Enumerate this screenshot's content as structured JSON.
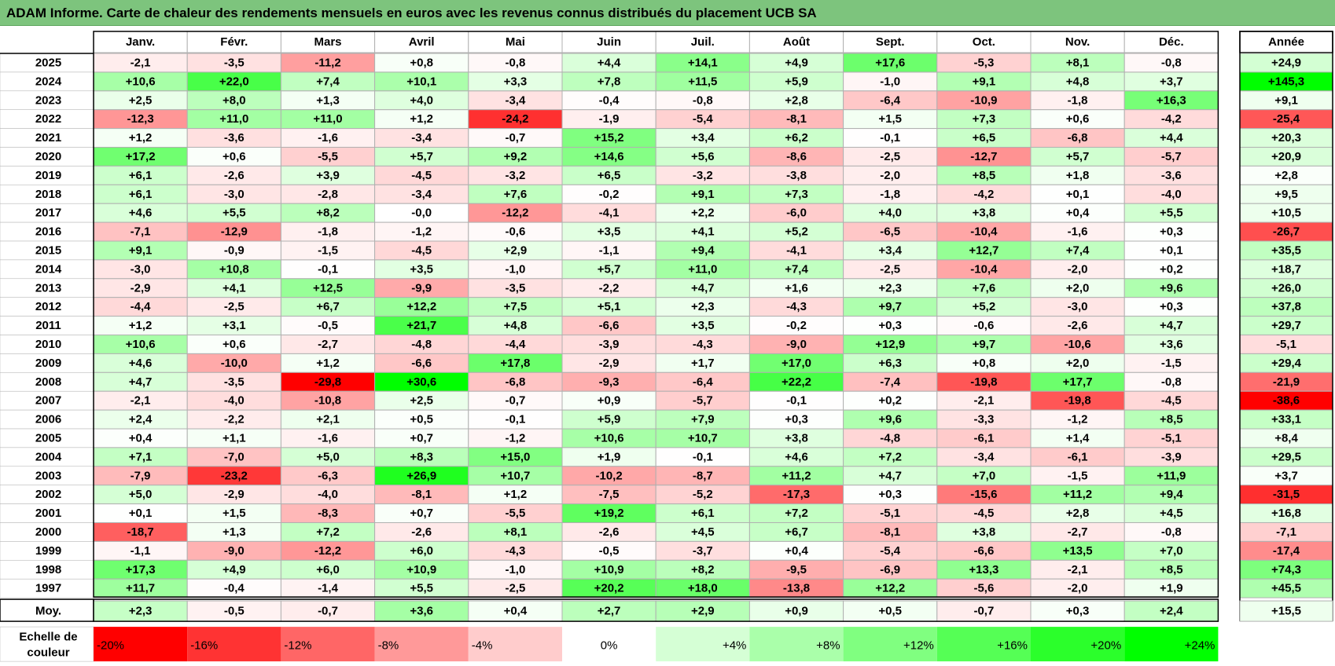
{
  "title": "ADAM Informe. Carte de chaleur des rendements mensuels en euros avec les revenus connus distribués du placement UCB SA",
  "chart_data": {
    "type": "heatmap",
    "months": [
      "Janv.",
      "Févr.",
      "Mars",
      "Avril",
      "Mai",
      "Juin",
      "Juil.",
      "Août",
      "Sept.",
      "Oct.",
      "Nov.",
      "Déc."
    ],
    "year_header": "Année",
    "rows": [
      {
        "year": "2025",
        "values": [
          "-2,1",
          "-3,5",
          "-11,2",
          "+0,8",
          "-0,8",
          "+4,4",
          "+14,1",
          "+4,9",
          "+17,6",
          "-5,3",
          "+8,1",
          "-0,8"
        ],
        "annual": "+24,9"
      },
      {
        "year": "2024",
        "values": [
          "+10,6",
          "+22,0",
          "+7,4",
          "+10,1",
          "+3,3",
          "+7,8",
          "+11,5",
          "+5,9",
          "-1,0",
          "+9,1",
          "+4,8",
          "+3,7"
        ],
        "annual": "+145,3"
      },
      {
        "year": "2023",
        "values": [
          "+2,5",
          "+8,0",
          "+1,3",
          "+4,0",
          "-3,4",
          "-0,4",
          "-0,8",
          "+2,8",
          "-6,4",
          "-10,9",
          "-1,8",
          "+16,3"
        ],
        "annual": "+9,1"
      },
      {
        "year": "2022",
        "values": [
          "-12,3",
          "+11,0",
          "+11,0",
          "+1,2",
          "-24,2",
          "-1,9",
          "-5,4",
          "-8,1",
          "+1,5",
          "+7,3",
          "+0,6",
          "-4,2"
        ],
        "annual": "-25,4"
      },
      {
        "year": "2021",
        "values": [
          "+1,2",
          "-3,6",
          "-1,6",
          "-3,4",
          "-0,7",
          "+15,2",
          "+3,4",
          "+6,2",
          "-0,1",
          "+6,5",
          "-6,8",
          "+4,4"
        ],
        "annual": "+20,3"
      },
      {
        "year": "2020",
        "values": [
          "+17,2",
          "+0,6",
          "-5,5",
          "+5,7",
          "+9,2",
          "+14,6",
          "+5,6",
          "-8,6",
          "-2,5",
          "-12,7",
          "+5,7",
          "-5,7"
        ],
        "annual": "+20,9"
      },
      {
        "year": "2019",
        "values": [
          "+6,1",
          "-2,6",
          "+3,9",
          "-4,5",
          "-3,2",
          "+6,5",
          "-3,2",
          "-3,8",
          "-2,0",
          "+8,5",
          "+1,8",
          "-3,6"
        ],
        "annual": "+2,8"
      },
      {
        "year": "2018",
        "values": [
          "+6,1",
          "-3,0",
          "-2,8",
          "-3,4",
          "+7,6",
          "-0,2",
          "+9,1",
          "+7,3",
          "-1,8",
          "-4,2",
          "+0,1",
          "-4,0"
        ],
        "annual": "+9,5"
      },
      {
        "year": "2017",
        "values": [
          "+4,6",
          "+5,5",
          "+8,2",
          "-0,0",
          "-12,2",
          "-4,1",
          "+2,2",
          "-6,0",
          "+4,0",
          "+3,8",
          "+0,4",
          "+5,5"
        ],
        "annual": "+10,5"
      },
      {
        "year": "2016",
        "values": [
          "-7,1",
          "-12,9",
          "-1,8",
          "-1,2",
          "-0,6",
          "+3,5",
          "+4,1",
          "+5,2",
          "-6,5",
          "-10,4",
          "-1,6",
          "+0,3"
        ],
        "annual": "-26,7"
      },
      {
        "year": "2015",
        "values": [
          "+9,1",
          "-0,9",
          "-1,5",
          "-4,5",
          "+2,9",
          "-1,1",
          "+9,4",
          "-4,1",
          "+3,4",
          "+12,7",
          "+7,4",
          "+0,1"
        ],
        "annual": "+35,5"
      },
      {
        "year": "2014",
        "values": [
          "-3,0",
          "+10,8",
          "-0,1",
          "+3,5",
          "-1,0",
          "+5,7",
          "+11,0",
          "+7,4",
          "-2,5",
          "-10,4",
          "-2,0",
          "+0,2"
        ],
        "annual": "+18,7"
      },
      {
        "year": "2013",
        "values": [
          "-2,9",
          "+4,1",
          "+12,5",
          "-9,9",
          "-3,5",
          "-2,2",
          "+4,7",
          "+1,6",
          "+2,3",
          "+7,6",
          "+2,0",
          "+9,6"
        ],
        "annual": "+26,0"
      },
      {
        "year": "2012",
        "values": [
          "-4,4",
          "-2,5",
          "+6,7",
          "+12,2",
          "+7,5",
          "+5,1",
          "+2,3",
          "-4,3",
          "+9,7",
          "+5,2",
          "-3,0",
          "+0,3"
        ],
        "annual": "+37,8"
      },
      {
        "year": "2011",
        "values": [
          "+1,2",
          "+3,1",
          "-0,5",
          "+21,7",
          "+4,8",
          "-6,6",
          "+3,5",
          "-0,2",
          "+0,3",
          "-0,6",
          "-2,6",
          "+4,7"
        ],
        "annual": "+29,7"
      },
      {
        "year": "2010",
        "values": [
          "+10,6",
          "+0,6",
          "-2,7",
          "-4,8",
          "-4,4",
          "-3,9",
          "-4,3",
          "-9,0",
          "+12,9",
          "+9,7",
          "-10,6",
          "+3,6"
        ],
        "annual": "-5,1"
      },
      {
        "year": "2009",
        "values": [
          "+4,6",
          "-10,0",
          "+1,2",
          "-6,6",
          "+17,8",
          "-2,9",
          "+1,7",
          "+17,0",
          "+6,3",
          "+0,8",
          "+2,0",
          "-1,5"
        ],
        "annual": "+29,4"
      },
      {
        "year": "2008",
        "values": [
          "+4,7",
          "-3,5",
          "-29,8",
          "+30,6",
          "-6,8",
          "-9,3",
          "-6,4",
          "+22,2",
          "-7,4",
          "-19,8",
          "+17,7",
          "-0,8"
        ],
        "annual": "-21,9"
      },
      {
        "year": "2007",
        "values": [
          "-2,1",
          "-4,0",
          "-10,8",
          "+2,5",
          "-0,7",
          "+0,9",
          "-5,7",
          "-0,1",
          "+0,2",
          "-2,1",
          "-19,8",
          "-4,5"
        ],
        "annual": "-38,6"
      },
      {
        "year": "2006",
        "values": [
          "+2,4",
          "-2,2",
          "+2,1",
          "+0,5",
          "-0,1",
          "+5,9",
          "+7,9",
          "+0,3",
          "+9,6",
          "-3,3",
          "-1,2",
          "+8,5"
        ],
        "annual": "+33,1"
      },
      {
        "year": "2005",
        "values": [
          "+0,4",
          "+1,1",
          "-1,6",
          "+0,7",
          "-1,2",
          "+10,6",
          "+10,7",
          "+3,8",
          "-4,8",
          "-6,1",
          "+1,4",
          "-5,1"
        ],
        "annual": "+8,4"
      },
      {
        "year": "2004",
        "values": [
          "+7,1",
          "-7,0",
          "+5,0",
          "+8,3",
          "+15,0",
          "+1,9",
          "-0,1",
          "+4,6",
          "+7,2",
          "-3,4",
          "-6,1",
          "-3,9"
        ],
        "annual": "+29,5"
      },
      {
        "year": "2003",
        "values": [
          "-7,9",
          "-23,2",
          "-6,3",
          "+26,9",
          "+10,7",
          "-10,2",
          "-8,7",
          "+11,2",
          "+4,7",
          "+7,0",
          "-1,5",
          "+11,9"
        ],
        "annual": "+3,7"
      },
      {
        "year": "2002",
        "values": [
          "+5,0",
          "-2,9",
          "-4,0",
          "-8,1",
          "+1,2",
          "-7,5",
          "-5,2",
          "-17,3",
          "+0,3",
          "-15,6",
          "+11,2",
          "+9,4"
        ],
        "annual": "-31,5"
      },
      {
        "year": "2001",
        "values": [
          "+0,1",
          "+1,5",
          "-8,3",
          "+0,7",
          "-5,5",
          "+19,2",
          "+6,1",
          "+7,2",
          "-5,1",
          "-4,5",
          "+2,8",
          "+4,5"
        ],
        "annual": "+16,8"
      },
      {
        "year": "2000",
        "values": [
          "-18,7",
          "+1,3",
          "+7,2",
          "-2,6",
          "+8,1",
          "-2,6",
          "+4,5",
          "+6,7",
          "-8,1",
          "+3,8",
          "-2,7",
          "-0,8"
        ],
        "annual": "-7,1"
      },
      {
        "year": "1999",
        "values": [
          "-1,1",
          "-9,0",
          "-12,2",
          "+6,0",
          "-4,3",
          "-0,5",
          "-3,7",
          "+0,4",
          "-5,4",
          "-6,6",
          "+13,5",
          "+7,0"
        ],
        "annual": "-17,4"
      },
      {
        "year": "1998",
        "values": [
          "+17,3",
          "+4,9",
          "+6,0",
          "+10,9",
          "-1,0",
          "+10,9",
          "+8,2",
          "-9,5",
          "-6,9",
          "+13,3",
          "-2,1",
          "+8,5"
        ],
        "annual": "+74,3"
      },
      {
        "year": "1997",
        "values": [
          "+11,7",
          "-0,4",
          "-1,4",
          "+5,5",
          "-2,5",
          "+20,2",
          "+18,0",
          "-13,8",
          "+12,2",
          "-5,6",
          "-2,0",
          "+1,9"
        ],
        "annual": "+45,5"
      }
    ],
    "average": {
      "label": "Moy.",
      "values": [
        "+2,3",
        "-0,5",
        "-0,7",
        "+3,6",
        "+0,4",
        "+2,7",
        "+2,9",
        "+0,9",
        "+0,5",
        "-0,7",
        "+0,3",
        "+2,4"
      ],
      "annual": "+15,5"
    },
    "scale": {
      "label_line1": "Echelle de",
      "label_line2": "couleur",
      "labels": [
        "-20%",
        "-16%",
        "-12%",
        "-8%",
        "-4%",
        "0%",
        "+4%",
        "+8%",
        "+12%",
        "+16%",
        "+20%",
        "+24%"
      ]
    },
    "colors": {
      "negative_max": "#ff0000",
      "neutral": "#ffffff",
      "positive_max": "#00ff00",
      "title_bar": "#7dc47d",
      "border": "#b0b0b0"
    }
  }
}
